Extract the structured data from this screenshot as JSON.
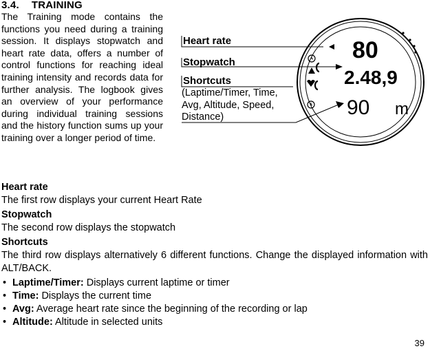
{
  "section": {
    "number": "3.4.",
    "title": "TRAINING"
  },
  "intro": "The Training mode contains the functions you need during a training session. It displays stopwatch and heart rate data, offers a number of control functions for reaching ideal training intensity and records data for further analysis. The logbook gives an overview of your performance during individual training sessions and the history function sums up your training over a longer period of time.",
  "figure": {
    "callouts": {
      "heart_rate": "Heart rate",
      "stopwatch": "Stopwatch",
      "shortcuts": "Shortcuts",
      "shortcuts_detail_1": "(Laptime/Timer, Time,",
      "shortcuts_detail_2": "Avg, Altitude, Speed,",
      "shortcuts_detail_3": "Distance)"
    },
    "display": {
      "row1": "80",
      "row2": "2.48,9",
      "row3_value": "90",
      "row3_unit": "m"
    }
  },
  "blocks": {
    "heart_rate_heading": "Heart rate",
    "heart_rate_text": "The first row displays your current Heart Rate",
    "stopwatch_heading": "Stopwatch",
    "stopwatch_text": "The second row displays the stopwatch",
    "shortcuts_heading": "Shortcuts",
    "shortcuts_text": "The third row displays alternatively 6 different functions. Change the displayed information with ALT/BACK."
  },
  "list": [
    {
      "term": "Laptime/Timer:",
      "desc": " Displays current laptime or timer"
    },
    {
      "term": "Time:",
      "desc": " Displays the current time"
    },
    {
      "term": "Avg:",
      "desc": " Average heart rate since the beginning of the recording or lap"
    },
    {
      "term": "Altitude:",
      "desc": " Altitude in selected units"
    }
  ],
  "page_number": "39"
}
